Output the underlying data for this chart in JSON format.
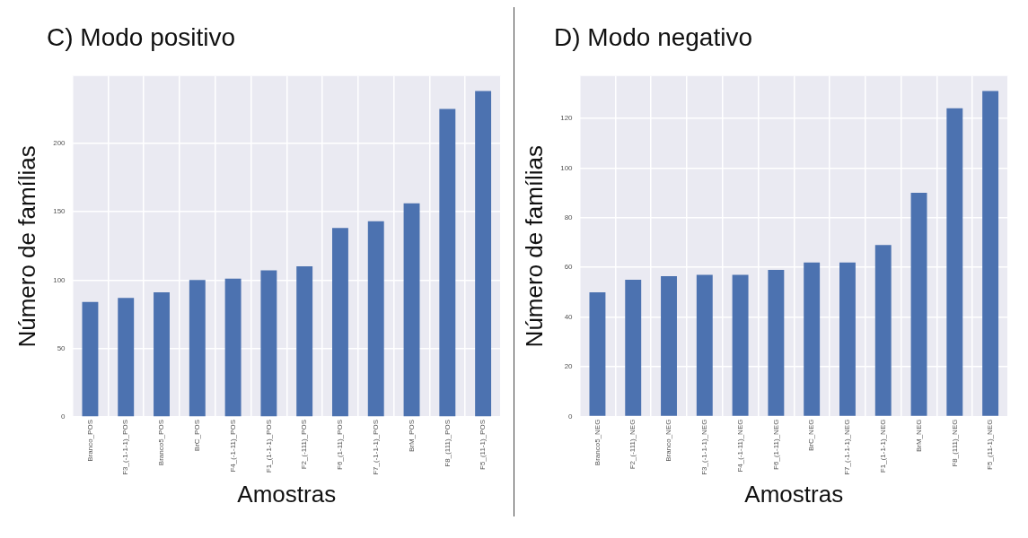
{
  "chart_data": [
    {
      "type": "bar",
      "title": "C) Modo positivo",
      "xlabel": "Amostras",
      "ylabel": "Número de famílias",
      "categories": [
        "Branco_POS",
        "F3_(-1-1-1)_POS",
        "Branco5_POS",
        "BrC_POS",
        "F4_(-1-11)_POS",
        "F1_(1-1-1)_POS",
        "F2_(-111)_POS",
        "F6_(1-11)_POS",
        "F7_(-1-1-1)_POS",
        "BrM_POS",
        "F8_(111)_POS",
        "F5_(11-1)_POS"
      ],
      "values": [
        84,
        87,
        91,
        100,
        101,
        107,
        110,
        138,
        143,
        156,
        225,
        238
      ],
      "color": "#4c72b0",
      "ylim": [
        0,
        249
      ],
      "yticks": [
        0,
        50,
        100,
        150,
        200
      ],
      "grid": true,
      "legend": false
    },
    {
      "type": "bar",
      "title": "D) Modo negativo",
      "xlabel": "Amostras",
      "ylabel": "Número de famílias",
      "categories": [
        "Branco5_NEG",
        "F2_(-111)_NEG",
        "Branco_NEG",
        "F3_(-1-1-1)_NEG",
        "F4_(-1-11)_NEG",
        "F6_(1-11)_NEG",
        "BrC_NEG",
        "F7_(-1-1-1)_NEG",
        "F1_(1-1-1)_NEG",
        "BrM_NEG",
        "F8_(111)_NEG",
        "F5_(11-1)_NEG"
      ],
      "values": [
        50,
        55,
        56.5,
        57,
        57,
        59,
        62,
        62,
        69,
        90,
        124,
        131
      ],
      "color": "#4c72b0",
      "ylim": [
        0,
        137
      ],
      "yticks": [
        0,
        20,
        40,
        60,
        80,
        100,
        120
      ],
      "grid": true,
      "legend": false
    }
  ]
}
